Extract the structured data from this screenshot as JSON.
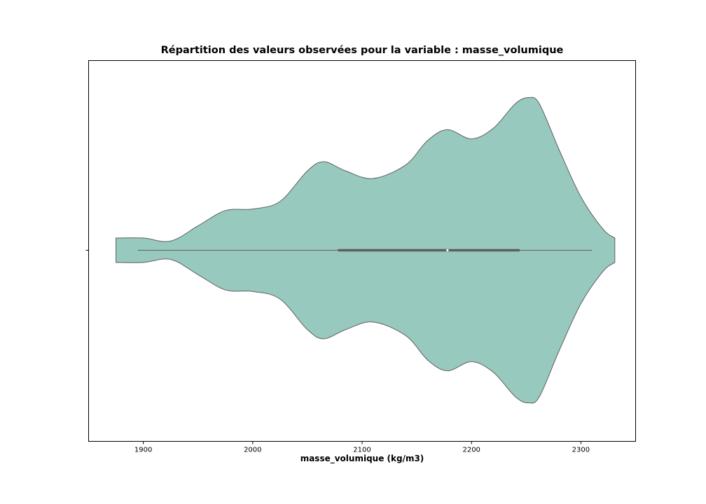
{
  "chart_data": {
    "type": "violin",
    "title": "Répartition des valeurs observées pour la variable : masse_volumique",
    "xlabel": "masse_volumique  (kg/m3)",
    "ylabel": "",
    "xlim": [
      1850,
      2350
    ],
    "xticks": [
      1900,
      2000,
      2100,
      2200,
      2300
    ],
    "grid": false,
    "fill_color": "#97c9bf",
    "line_color": "#5f5f5f",
    "box": {
      "min": 1895,
      "q1": 2078,
      "median": 2178,
      "q3": 2244,
      "max": 2310
    },
    "density": [
      [
        1875,
        0.08
      ],
      [
        1900,
        0.08
      ],
      [
        1925,
        0.06
      ],
      [
        1950,
        0.16
      ],
      [
        1975,
        0.26
      ],
      [
        2000,
        0.27
      ],
      [
        2025,
        0.32
      ],
      [
        2050,
        0.52
      ],
      [
        2065,
        0.58
      ],
      [
        2085,
        0.52
      ],
      [
        2110,
        0.47
      ],
      [
        2140,
        0.56
      ],
      [
        2160,
        0.72
      ],
      [
        2178,
        0.79
      ],
      [
        2200,
        0.73
      ],
      [
        2220,
        0.8
      ],
      [
        2240,
        0.96
      ],
      [
        2252,
        1.0
      ],
      [
        2262,
        0.96
      ],
      [
        2280,
        0.66
      ],
      [
        2300,
        0.35
      ],
      [
        2320,
        0.14
      ],
      [
        2331,
        0.08
      ]
    ]
  }
}
